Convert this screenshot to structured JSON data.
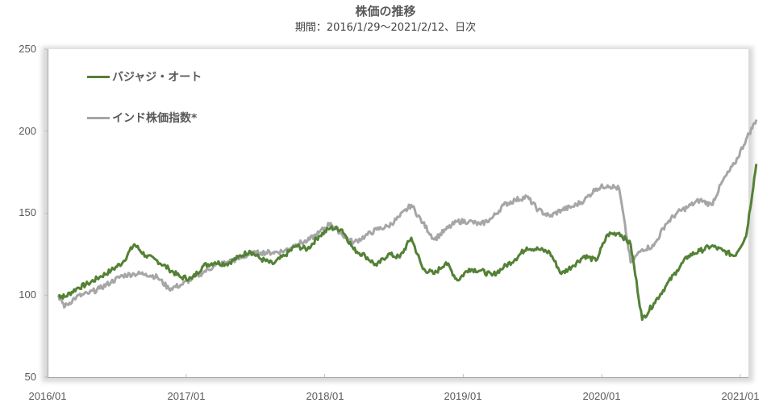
{
  "header": {
    "title": "株価の推移",
    "subtitle": "期間：2016/1/29〜2021/2/12、日次"
  },
  "legend": [
    {
      "label": "バジャジ・オート",
      "color": "#538135"
    },
    {
      "label": "インド株価指数*",
      "color": "#a6a6a6"
    }
  ],
  "y_axis": {
    "ticks": [
      "250",
      "200",
      "150",
      "100",
      "50"
    ]
  },
  "x_axis": {
    "ticks": [
      "2016/01",
      "2017/01",
      "2018/01",
      "2019/01",
      "2020/01",
      "2021/01"
    ]
  },
  "chart_data": {
    "type": "line",
    "title": "株価の推移",
    "subtitle": "期間：2016/1/29〜2021/2/12、日次",
    "xlabel": "",
    "ylabel": "",
    "ylim": [
      50,
      250
    ],
    "yticks": [
      50,
      100,
      150,
      200,
      250
    ],
    "xticks": [
      "2016/01",
      "2017/01",
      "2018/01",
      "2019/01",
      "2020/01",
      "2021/01"
    ],
    "grid": false,
    "legend_position": "top-left inside",
    "x": [
      "2016/01/29",
      "2016/02",
      "2016/03",
      "2016/04",
      "2016/05",
      "2016/06",
      "2016/07",
      "2016/08",
      "2016/09",
      "2016/10",
      "2016/11",
      "2016/12",
      "2017/01",
      "2017/02",
      "2017/03",
      "2017/04",
      "2017/05",
      "2017/06",
      "2017/07",
      "2017/08",
      "2017/09",
      "2017/10",
      "2017/11",
      "2017/12",
      "2018/01",
      "2018/02",
      "2018/03",
      "2018/04",
      "2018/05",
      "2018/06",
      "2018/07",
      "2018/08",
      "2018/09",
      "2018/10",
      "2018/11",
      "2018/12",
      "2019/01",
      "2019/02",
      "2019/03",
      "2019/04",
      "2019/05",
      "2019/06",
      "2019/07",
      "2019/08",
      "2019/09",
      "2019/10",
      "2019/11",
      "2019/12",
      "2020/01",
      "2020/02",
      "2020/03",
      "2020/04",
      "2020/05",
      "2020/06",
      "2020/07",
      "2020/08",
      "2020/09",
      "2020/10",
      "2020/11",
      "2020/12",
      "2021/01",
      "2021/02/12"
    ],
    "series": [
      {
        "name": "バジャジ・オート",
        "color": "#538135",
        "values": [
          100,
          99,
          104,
          107,
          111,
          115,
          120,
          131,
          124,
          121,
          116,
          111,
          110,
          118,
          120,
          119,
          123,
          127,
          122,
          119,
          124,
          130,
          128,
          136,
          141,
          140,
          128,
          124,
          118,
          125,
          123,
          135,
          116,
          113,
          120,
          109,
          116,
          115,
          112,
          117,
          122,
          129,
          128,
          126,
          113,
          118,
          124,
          121,
          137,
          138,
          131,
          85,
          95,
          105,
          115,
          124,
          127,
          130,
          127,
          124,
          136,
          180
        ]
      },
      {
        "name": "インド株価指数*",
        "color": "#a6a6a6",
        "values": [
          100,
          93,
          99,
          101,
          104,
          108,
          112,
          113,
          113,
          111,
          104,
          106,
          110,
          114,
          118,
          120,
          122,
          125,
          126,
          126,
          127,
          131,
          133,
          138,
          144,
          137,
          132,
          136,
          140,
          142,
          148,
          155,
          144,
          134,
          140,
          145,
          145,
          143,
          147,
          155,
          158,
          160,
          152,
          148,
          152,
          154,
          158,
          165,
          167,
          165,
          120,
          128,
          130,
          143,
          150,
          154,
          158,
          155,
          170,
          180,
          195,
          207
        ]
      }
    ]
  }
}
